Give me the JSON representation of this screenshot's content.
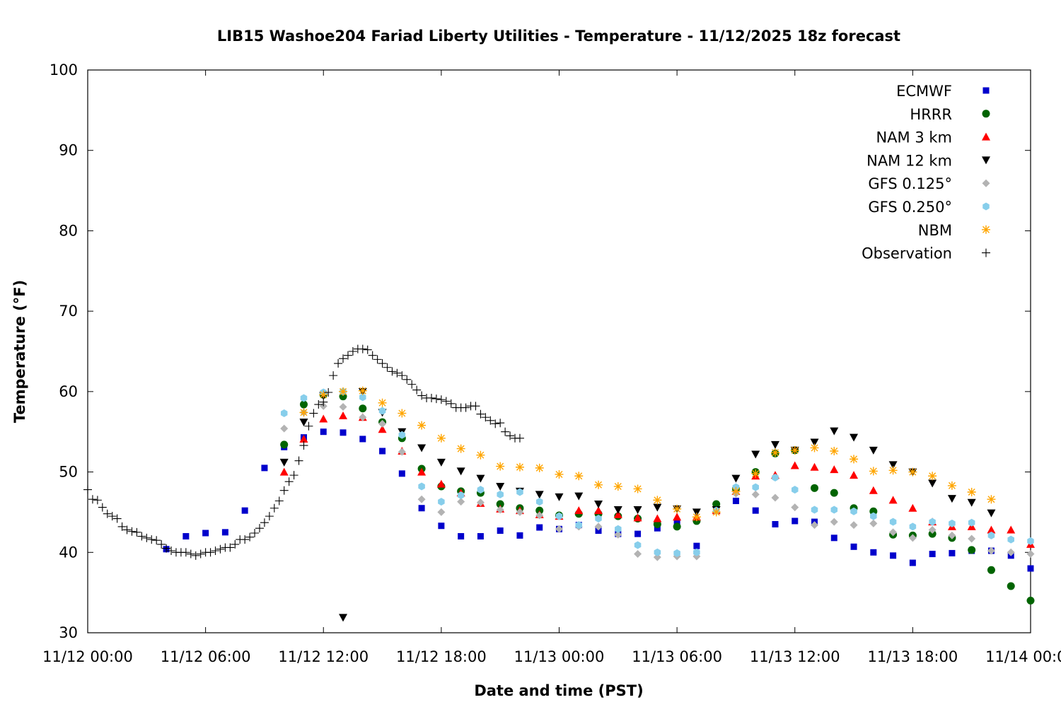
{
  "chart_data": {
    "type": "scatter",
    "title": "LIB15 Washoe204 Fariad Liberty Utilities - Temperature - 11/12/2025 18z forecast",
    "xlabel": "Date and time (PST)",
    "ylabel": "Temperature (°F)",
    "xlim": [
      0,
      48
    ],
    "ylim": [
      30,
      100
    ],
    "x_units": "hours since 11/12 00:00 PST",
    "xticks": [
      {
        "value": 0,
        "label": "11/12 00:00"
      },
      {
        "value": 6,
        "label": "11/12 06:00"
      },
      {
        "value": 12,
        "label": "11/12 12:00"
      },
      {
        "value": 18,
        "label": "11/12 18:00"
      },
      {
        "value": 24,
        "label": "11/13 00:00"
      },
      {
        "value": 30,
        "label": "11/13 06:00"
      },
      {
        "value": 36,
        "label": "11/13 12:00"
      },
      {
        "value": 42,
        "label": "11/13 18:00"
      },
      {
        "value": 48,
        "label": "11/14 00:00"
      }
    ],
    "yticks": [
      30,
      40,
      50,
      60,
      70,
      80,
      90,
      100
    ],
    "grid": false,
    "legend_position": "top-right",
    "series": [
      {
        "name": "ECMWF",
        "marker": "square",
        "color": "#0000cc",
        "x": [
          4,
          5,
          6,
          7,
          8,
          9,
          10,
          11,
          12,
          13,
          14,
          15,
          16,
          17,
          18,
          19,
          20,
          21,
          22,
          23,
          24,
          25,
          26,
          27,
          28,
          29,
          30,
          31,
          32,
          33,
          34,
          35,
          36,
          37,
          38,
          39,
          40,
          41,
          42,
          43,
          44,
          45,
          46,
          47,
          48
        ],
        "y": [
          40.4,
          42.0,
          42.4,
          42.5,
          45.2,
          50.5,
          53.1,
          54.3,
          55.0,
          54.9,
          54.1,
          52.6,
          49.8,
          45.5,
          43.3,
          42.0,
          42.0,
          42.7,
          42.1,
          43.1,
          42.9,
          43.4,
          42.7,
          42.3,
          42.3,
          43.0,
          43.7,
          40.8,
          45.3,
          46.4,
          45.2,
          43.5,
          43.9,
          43.8,
          41.8,
          40.7,
          40.0,
          39.6,
          38.7,
          39.8,
          39.9,
          40.2,
          40.2,
          39.6,
          38.0
        ]
      },
      {
        "name": "HRRR",
        "marker": "circle",
        "color": "#006400",
        "x": [
          10,
          11,
          12,
          13,
          14,
          15,
          16,
          17,
          18,
          19,
          20,
          21,
          22,
          23,
          24,
          25,
          26,
          27,
          28,
          29,
          30,
          31,
          32,
          33,
          34,
          35,
          36,
          37,
          38,
          39,
          40,
          41,
          42,
          43,
          44,
          45,
          46,
          47,
          48
        ],
        "y": [
          53.4,
          58.4,
          59.6,
          59.4,
          57.9,
          56.2,
          54.2,
          50.4,
          48.2,
          47.6,
          47.4,
          46.0,
          45.5,
          45.2,
          44.6,
          44.8,
          44.8,
          44.5,
          44.2,
          43.5,
          43.2,
          43.9,
          46.0,
          47.9,
          50.0,
          52.3,
          52.7,
          48.0,
          47.4,
          45.5,
          45.1,
          42.2,
          42.1,
          42.3,
          41.8,
          40.3,
          37.8,
          35.8,
          34.0
        ]
      },
      {
        "name": "NAM 3 km",
        "marker": "triangle-up",
        "color": "#ff0000",
        "x": [
          10,
          11,
          12,
          13,
          14,
          15,
          16,
          17,
          18,
          19,
          20,
          21,
          22,
          23,
          24,
          25,
          26,
          27,
          28,
          29,
          30,
          31,
          32,
          33,
          34,
          35,
          36,
          37,
          38,
          39,
          40,
          41,
          42,
          43,
          44,
          45,
          46,
          47,
          48
        ],
        "y": [
          50.0,
          54.1,
          56.6,
          57.0,
          56.8,
          55.3,
          52.6,
          50.0,
          48.5,
          47.4,
          46.1,
          45.4,
          45.2,
          44.7,
          44.5,
          45.2,
          45.2,
          44.7,
          44.3,
          44.2,
          44.4,
          44.4,
          45.2,
          47.6,
          49.5,
          49.6,
          50.8,
          50.6,
          50.3,
          49.6,
          47.7,
          46.5,
          45.5,
          43.8,
          43.2,
          43.2,
          42.8,
          42.8,
          41.0
        ]
      },
      {
        "name": "NAM 12 km",
        "marker": "triangle-down",
        "color": "#000000",
        "x": [
          10,
          11,
          12,
          13,
          14,
          15,
          16,
          17,
          18,
          19,
          20,
          21,
          22,
          23,
          24,
          25,
          26,
          27,
          28,
          29,
          30,
          31,
          32,
          33,
          34,
          35,
          36,
          37,
          38,
          39,
          40,
          41,
          42,
          43,
          44,
          45,
          46,
          47,
          48
        ],
        "y": [
          51.2,
          56.2,
          59.5,
          31.9,
          60.0,
          57.4,
          55.0,
          53.0,
          51.2,
          50.1,
          49.2,
          48.2,
          47.6,
          47.2,
          46.9,
          47.0,
          46.0,
          45.3,
          45.3,
          45.6,
          45.4,
          45.0,
          45.3,
          49.2,
          52.2,
          53.4,
          52.7,
          53.7,
          55.1,
          54.3,
          52.7,
          50.9,
          50.0,
          48.6,
          46.7,
          46.2,
          44.9,
          null,
          null
        ]
      },
      {
        "name": "GFS 0.125°",
        "marker": "diamond",
        "color": "#b3b3b3",
        "x": [
          10,
          11,
          12,
          13,
          14,
          15,
          16,
          17,
          18,
          19,
          20,
          21,
          22,
          23,
          24,
          25,
          26,
          27,
          28,
          29,
          30,
          31,
          32,
          33,
          34,
          35,
          36,
          37,
          38,
          39,
          40,
          41,
          42,
          43,
          44,
          45,
          46,
          47,
          48
        ],
        "y": [
          55.4,
          57.4,
          58.2,
          58.1,
          56.8,
          56.0,
          52.5,
          46.6,
          45.0,
          46.3,
          46.2,
          45.3,
          45.0,
          44.6,
          42.9,
          43.2,
          43.2,
          42.2,
          39.8,
          39.4,
          39.5,
          39.5,
          45.1,
          47.3,
          47.2,
          46.8,
          45.6,
          43.4,
          43.8,
          43.4,
          43.6,
          42.5,
          41.8,
          42.8,
          42.1,
          41.7,
          40.2,
          40.0,
          39.8
        ]
      },
      {
        "name": "GFS 0.250°",
        "marker": "hexagon",
        "color": "#87ceeb",
        "x": [
          10,
          11,
          12,
          13,
          14,
          15,
          16,
          17,
          18,
          19,
          20,
          21,
          22,
          23,
          24,
          25,
          26,
          27,
          28,
          29,
          30,
          31,
          32,
          33,
          34,
          35,
          36,
          37,
          38,
          39,
          40,
          41,
          42,
          43,
          44,
          45,
          46,
          47,
          48
        ],
        "y": [
          57.3,
          59.2,
          59.9,
          60.0,
          59.3,
          57.6,
          54.6,
          48.2,
          46.3,
          47.1,
          47.8,
          47.2,
          47.5,
          46.3,
          44.5,
          43.4,
          44.2,
          42.9,
          40.9,
          40.0,
          39.9,
          40.0,
          45.2,
          48.1,
          48.1,
          49.3,
          47.8,
          45.3,
          45.3,
          45.1,
          44.5,
          43.8,
          43.2,
          43.8,
          43.6,
          43.7,
          42.1,
          41.6,
          41.4
        ]
      },
      {
        "name": "NBM",
        "marker": "star",
        "color": "#ffa500",
        "x": [
          11,
          12,
          13,
          14,
          15,
          16,
          17,
          18,
          19,
          20,
          21,
          22,
          23,
          24,
          25,
          26,
          27,
          28,
          29,
          30,
          31,
          32,
          33,
          34,
          35,
          36,
          37,
          38,
          39,
          40,
          41,
          42,
          43,
          44,
          45,
          46
        ],
        "y": [
          57.4,
          59.6,
          60.0,
          60.1,
          58.6,
          57.3,
          55.8,
          54.2,
          52.9,
          52.1,
          50.7,
          50.6,
          50.5,
          49.7,
          49.5,
          48.4,
          48.2,
          47.9,
          46.5,
          45.4,
          44.4,
          45.0,
          47.6,
          49.8,
          52.4,
          52.7,
          53.0,
          52.6,
          51.6,
          50.1,
          50.2,
          50.0,
          49.5,
          48.3,
          47.5,
          46.6
        ]
      },
      {
        "name": "Observation",
        "marker": "plus",
        "color": "#000000",
        "x": [
          0,
          0.25,
          0.5,
          0.75,
          1,
          1.25,
          1.5,
          1.75,
          2,
          2.25,
          2.5,
          2.75,
          3,
          3.25,
          3.5,
          3.75,
          4,
          4.25,
          4.5,
          4.75,
          5,
          5.25,
          5.5,
          5.75,
          6,
          6.25,
          6.5,
          6.75,
          7,
          7.25,
          7.5,
          7.75,
          8,
          8.25,
          8.5,
          8.75,
          9,
          9.25,
          9.5,
          9.75,
          10,
          10.25,
          10.5,
          10.75,
          11,
          11.25,
          11.5,
          11.75,
          12,
          12.25,
          12.5,
          12.75,
          13,
          13.25,
          13.5,
          13.75,
          14,
          14.25,
          14.5,
          14.75,
          15,
          15.25,
          15.5,
          15.75,
          16,
          16.25,
          16.5,
          16.75,
          17,
          17.25,
          17.5,
          17.75,
          18,
          18.25,
          18.5,
          18.75,
          19,
          19.25,
          19.5,
          19.75,
          20,
          20.25,
          20.5,
          20.75,
          21,
          21.25,
          21.5,
          21.75,
          22
        ],
        "y": [
          47.8,
          46.6,
          46.5,
          45.6,
          44.8,
          44.5,
          44.2,
          43.2,
          42.8,
          42.6,
          42.5,
          42.0,
          41.8,
          41.6,
          41.5,
          41.0,
          40.5,
          40.2,
          40.0,
          40.0,
          40.0,
          39.8,
          39.6,
          39.8,
          40.0,
          40.0,
          40.2,
          40.4,
          40.6,
          40.6,
          41.0,
          41.6,
          41.6,
          41.9,
          42.4,
          43.0,
          43.7,
          44.5,
          45.5,
          46.4,
          47.7,
          48.8,
          49.6,
          51.4,
          53.3,
          55.7,
          57.3,
          58.4,
          58.7,
          59.9,
          62.0,
          63.5,
          64.1,
          64.5,
          65.0,
          65.3,
          65.3,
          65.2,
          64.5,
          64.0,
          63.5,
          63.0,
          62.5,
          62.3,
          62.0,
          61.5,
          60.9,
          60.2,
          59.5,
          59.2,
          59.2,
          59.1,
          59.0,
          58.8,
          58.5,
          58.0,
          58.0,
          58.0,
          58.2,
          58.2,
          57.2,
          56.8,
          56.4,
          56.0,
          56.1,
          55.0,
          54.5,
          54.2,
          54.2
        ]
      }
    ]
  }
}
